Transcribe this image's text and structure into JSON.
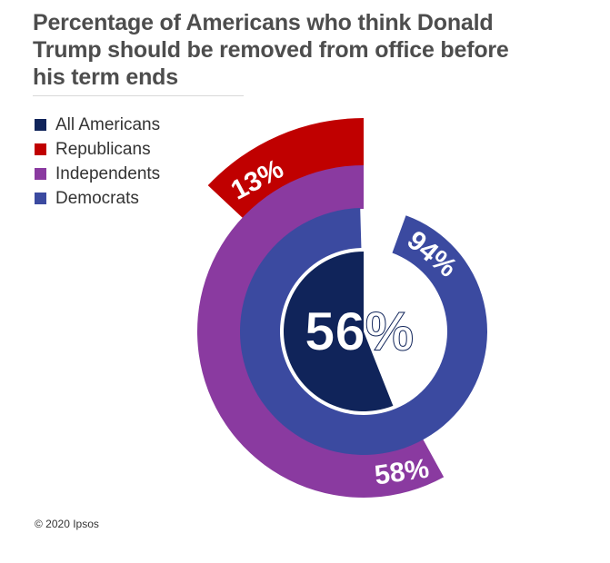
{
  "title": "Percentage of Americans who think Donald Trump should be removed from office before his term ends",
  "copyright": "© 2020 Ipsos",
  "colors": {
    "all_americans": "#10245a",
    "republicans": "#c00000",
    "independents": "#8a3aa0",
    "democrats": "#3b4aa0"
  },
  "chart_data": {
    "type": "radial-bar",
    "series": [
      {
        "name": "All Americans",
        "value": 56,
        "label": "56%",
        "color": "#10245a"
      },
      {
        "name": "Republicans",
        "value": 13,
        "label": "13%",
        "color": "#c00000"
      },
      {
        "name": "Independents",
        "value": 58,
        "label": "58%",
        "color": "#8a3aa0"
      },
      {
        "name": "Democrats",
        "value": 94,
        "label": "94%",
        "color": "#3b4aa0"
      }
    ],
    "unit": "%",
    "legend_position": "top-left"
  }
}
